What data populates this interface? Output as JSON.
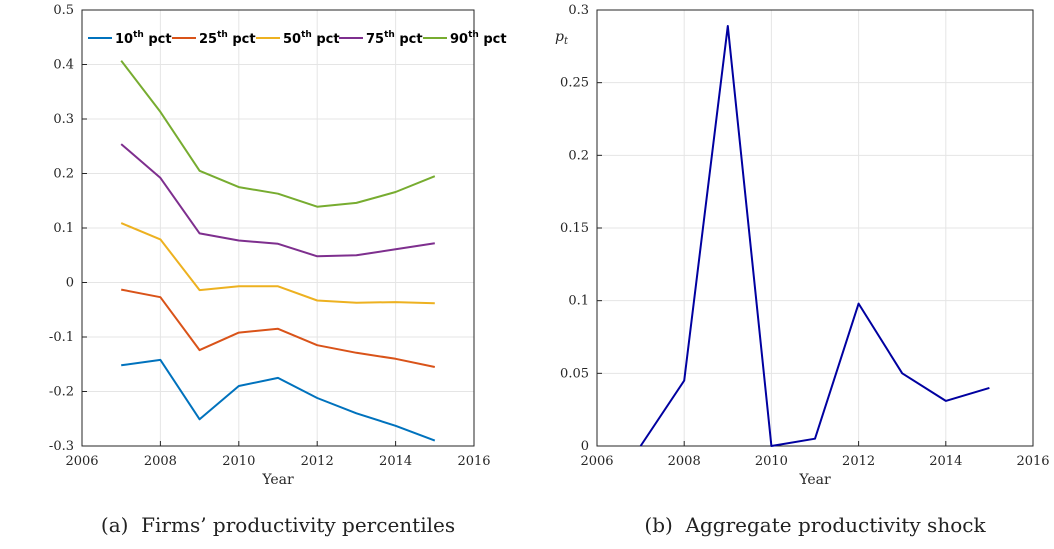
{
  "chart_data": [
    {
      "type": "line",
      "caption": "(a)  Firms’ productivity percentiles",
      "xlabel": "Year",
      "ylabel": "",
      "xlim": [
        2006,
        2016
      ],
      "ylim": [
        -0.3,
        0.5
      ],
      "grid": true,
      "legend_position": "top",
      "x_ticks": [
        "2006",
        "2008",
        "2010",
        "2012",
        "2014",
        "2016"
      ],
      "y_ticks": [
        "0.5",
        "0.4",
        "0.3",
        "0.2",
        "0.1",
        "0",
        "-0.1",
        "-0.2",
        "-0.3"
      ],
      "x": [
        2007,
        2008,
        2009,
        2010,
        2011,
        2012,
        2013,
        2014,
        2015
      ],
      "series": [
        {
          "name": "10th pct",
          "num": "10",
          "sup": "th",
          "suffix": " pct",
          "color": "#0072BD",
          "values": [
            -0.152,
            -0.142,
            -0.251,
            -0.19,
            -0.175,
            -0.212,
            -0.24,
            -0.263,
            -0.29
          ]
        },
        {
          "name": "25th pct",
          "num": "25",
          "sup": "th",
          "suffix": " pct",
          "color": "#D95319",
          "values": [
            -0.013,
            -0.027,
            -0.124,
            -0.092,
            -0.085,
            -0.115,
            -0.129,
            -0.14,
            -0.155
          ]
        },
        {
          "name": "50th pct",
          "num": "50",
          "sup": "th",
          "suffix": " pct",
          "color": "#EDB120",
          "values": [
            0.109,
            0.079,
            -0.014,
            -0.007,
            -0.007,
            -0.033,
            -0.037,
            -0.036,
            -0.038
          ]
        },
        {
          "name": "75th pct",
          "num": "75",
          "sup": "th",
          "suffix": " pct",
          "color": "#7E2F8E",
          "values": [
            0.254,
            0.192,
            0.09,
            0.077,
            0.071,
            0.048,
            0.05,
            0.061,
            0.072
          ]
        },
        {
          "name": "90th pct",
          "num": "90",
          "sup": "th",
          "suffix": " pct",
          "color": "#77AC30",
          "values": [
            0.407,
            0.313,
            0.205,
            0.175,
            0.163,
            0.139,
            0.146,
            0.166,
            0.195
          ]
        }
      ]
    },
    {
      "type": "line",
      "caption": "(b)  Aggregate productivity shock",
      "xlabel": "Year",
      "ylabel": "p",
      "ylabel_sub": "t",
      "xlim": [
        2006,
        2016
      ],
      "ylim": [
        0,
        0.3
      ],
      "grid": true,
      "x_ticks": [
        "2006",
        "2008",
        "2010",
        "2012",
        "2014",
        "2016"
      ],
      "y_ticks": [
        "0.3",
        "0.25",
        "0.2",
        "0.15",
        "0.1",
        "0.05",
        "0"
      ],
      "x": [
        2007,
        2008,
        2009,
        2010,
        2011,
        2012,
        2013,
        2014,
        2015
      ],
      "series": [
        {
          "color": "#0000A0",
          "values": [
            0.0,
            0.045,
            0.289,
            0.0,
            0.005,
            0.098,
            0.05,
            0.031,
            0.04
          ]
        }
      ]
    }
  ]
}
